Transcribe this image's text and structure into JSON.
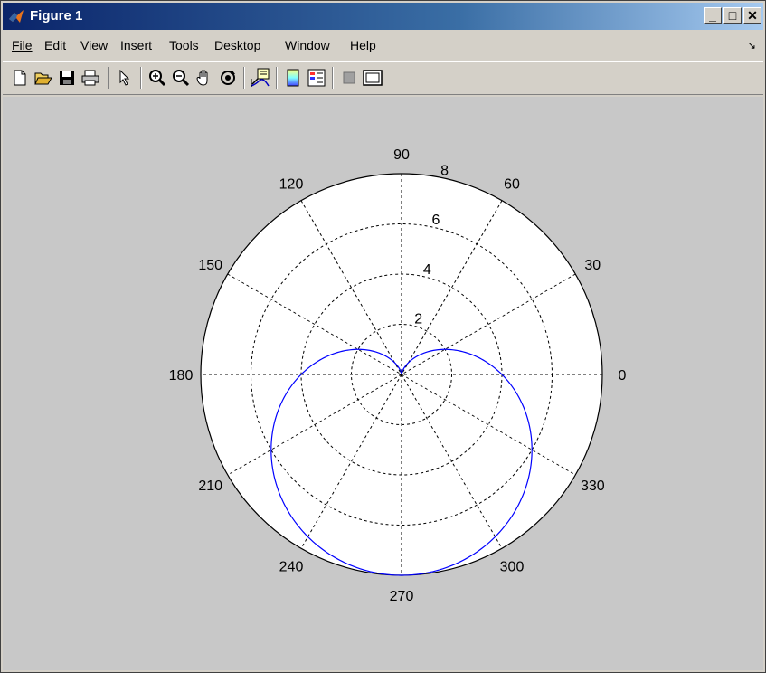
{
  "window": {
    "title": "Figure 1",
    "controls": {
      "minimize": "_",
      "maximize": "□",
      "close": "✕"
    }
  },
  "menu": [
    {
      "label": "File"
    },
    {
      "label": "Edit"
    },
    {
      "label": "View"
    },
    {
      "label": "Insert"
    },
    {
      "label": "Tools"
    },
    {
      "label": "Desktop"
    },
    {
      "label": "Window"
    },
    {
      "label": "Help"
    }
  ],
  "toolbar": [
    "new-figure-icon",
    "open-file-icon",
    "save-icon",
    "print-icon",
    "select-arrow-icon",
    "zoom-in-icon",
    "zoom-out-icon",
    "pan-hand-icon",
    "rotate-3d-icon",
    "data-cursor-icon",
    "colorbar-icon",
    "legend-icon",
    "hide-plot-tools-icon",
    "show-plot-tools-icon"
  ],
  "colors": {
    "curve": "#0000ff",
    "grid": "#000000",
    "background": "#c8c8c8"
  },
  "chart_data": {
    "type": "line",
    "coordinate_system": "polar",
    "equation_shape": "cardioid",
    "r_max": 8,
    "r_tick_labels": [
      "2",
      "4",
      "6",
      "8"
    ],
    "theta_tick_labels": [
      "0",
      "30",
      "60",
      "90",
      "120",
      "150",
      "180",
      "210",
      "240",
      "270",
      "300",
      "330"
    ],
    "grid": true,
    "series": [
      {
        "r_formula": "4*(1 - sin(theta))",
        "theta_range_deg": [
          0,
          360
        ]
      }
    ]
  }
}
